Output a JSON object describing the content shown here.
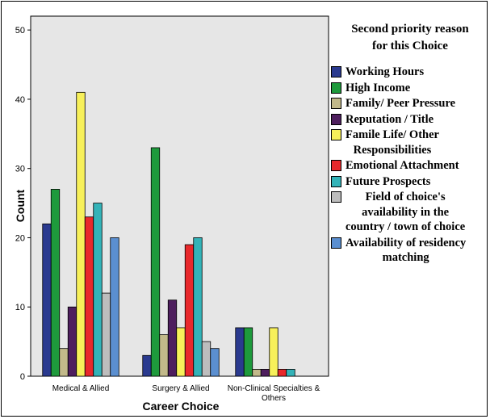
{
  "chart_data": {
    "type": "bar",
    "xlabel": "Career Choice",
    "ylabel": "Count",
    "ylim": [
      0,
      52
    ],
    "yticks": [
      0,
      10,
      20,
      30,
      40,
      50
    ],
    "grid": false,
    "legend_placement": "right",
    "categories": [
      "Medical & Allied",
      "Surgery & Allied",
      "Non-Clinical Specialties & Others"
    ],
    "category_labels": [
      [
        "Medical & Allied"
      ],
      [
        "Surgery & Allied"
      ],
      [
        "Non-Clinical Specialties &",
        "Others"
      ]
    ],
    "legend_title": "Second priority reason\nfor this Choice",
    "series": [
      {
        "name": "Working Hours",
        "color": "#2a3a8f",
        "values": [
          22,
          3,
          7
        ]
      },
      {
        "name": "High Income",
        "color": "#1e9a3c",
        "values": [
          27,
          33,
          7
        ]
      },
      {
        "name": "Family/ Peer Pressure",
        "color": "#c2b98a",
        "values": [
          4,
          6,
          1
        ]
      },
      {
        "name": "Reputation / Title",
        "color": "#4e1e5e",
        "values": [
          10,
          11,
          1
        ]
      },
      {
        "name": "Famile Life/ Other\nResponsibilities",
        "color": "#f7f05a",
        "values": [
          41,
          7,
          7
        ]
      },
      {
        "name": "Emotional Attachment",
        "color": "#e8282b",
        "values": [
          23,
          19,
          1
        ]
      },
      {
        "name": "Future Prospects",
        "color": "#33b3b8",
        "values": [
          25,
          20,
          1
        ]
      },
      {
        "name": "Field of choice's\navailability in the\ncountry / town of choice",
        "color": "#bdbdbd",
        "values": [
          12,
          5,
          0
        ]
      },
      {
        "name": "Availability of residency\nmatching",
        "color": "#5b8fd0",
        "values": [
          20,
          4,
          0
        ]
      }
    ]
  }
}
